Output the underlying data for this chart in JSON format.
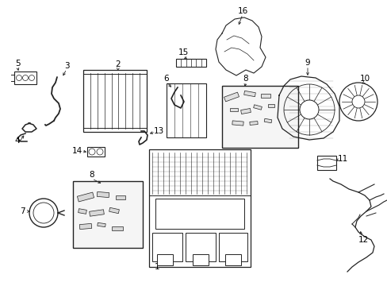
{
  "bg_color": "#ffffff",
  "line_color": "#222222",
  "label_color": "#000000",
  "fig_width": 4.89,
  "fig_height": 3.6,
  "dpi": 100,
  "xlim": [
    0,
    489
  ],
  "ylim": [
    0,
    360
  ]
}
